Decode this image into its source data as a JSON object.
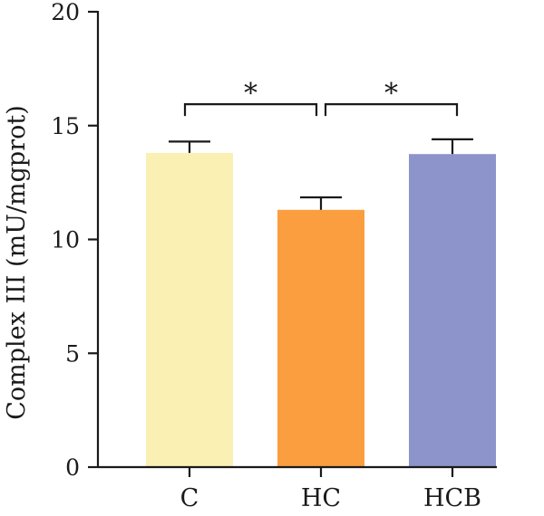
{
  "chart_data": {
    "type": "bar",
    "title": "",
    "xlabel": "",
    "ylabel": "Complex III (mU/mgprot)",
    "ylim": [
      0,
      20
    ],
    "yticks": [
      0,
      5,
      10,
      15,
      20
    ],
    "categories": [
      "C",
      "HC",
      "HCB"
    ],
    "values": [
      13.8,
      11.3,
      13.75
    ],
    "errors": [
      0.5,
      0.55,
      0.65
    ],
    "colors": [
      "#fbf0b3",
      "#fb9e3f",
      "#8c94cb"
    ],
    "significance": [
      {
        "from": "C",
        "to": "HC",
        "label": "*",
        "level": 15.9
      },
      {
        "from": "HC",
        "to": "HCB",
        "label": "*",
        "level": 15.9
      }
    ],
    "grid": false,
    "legend": "none"
  }
}
